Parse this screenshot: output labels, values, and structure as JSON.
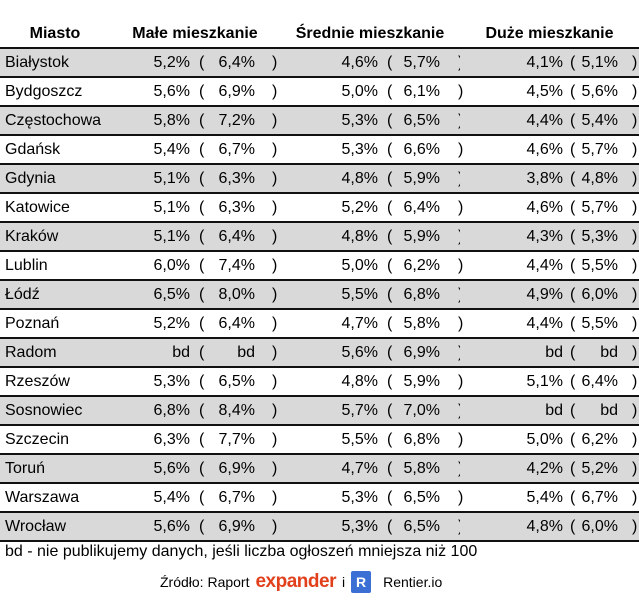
{
  "headers": [
    "Miasto",
    "Małe mieszkanie",
    "Średnie mieszkanie",
    "Duże mieszkanie"
  ],
  "rows": [
    [
      "Białystok",
      "5,2%",
      "6,4%",
      "4,6%",
      "5,7%",
      "4,1%",
      "5,1%"
    ],
    [
      "Bydgoszcz",
      "5,6%",
      "6,9%",
      "5,0%",
      "6,1%",
      "4,5%",
      "5,6%"
    ],
    [
      "Częstochowa",
      "5,8%",
      "7,2%",
      "5,3%",
      "6,5%",
      "4,4%",
      "5,4%"
    ],
    [
      "Gdańsk",
      "5,4%",
      "6,7%",
      "5,3%",
      "6,6%",
      "4,6%",
      "5,7%"
    ],
    [
      "Gdynia",
      "5,1%",
      "6,3%",
      "4,8%",
      "5,9%",
      "3,8%",
      "4,8%"
    ],
    [
      "Katowice",
      "5,1%",
      "6,3%",
      "5,2%",
      "6,4%",
      "4,6%",
      "5,7%"
    ],
    [
      "Kraków",
      "5,1%",
      "6,4%",
      "4,8%",
      "5,9%",
      "4,3%",
      "5,3%"
    ],
    [
      "Lublin",
      "6,0%",
      "7,4%",
      "5,0%",
      "6,2%",
      "4,4%",
      "5,5%"
    ],
    [
      "Łódź",
      "6,5%",
      "8,0%",
      "5,5%",
      "6,8%",
      "4,9%",
      "6,0%"
    ],
    [
      "Poznań",
      "5,2%",
      "6,4%",
      "4,7%",
      "5,8%",
      "4,4%",
      "5,5%"
    ],
    [
      "Radom",
      "bd",
      "bd",
      "5,6%",
      "6,9%",
      "bd",
      "bd"
    ],
    [
      "Rzeszów",
      "5,3%",
      "6,5%",
      "4,8%",
      "5,9%",
      "5,1%",
      "6,4%"
    ],
    [
      "Sosnowiec",
      "6,8%",
      "8,4%",
      "5,7%",
      "7,0%",
      "bd",
      "bd"
    ],
    [
      "Szczecin",
      "6,3%",
      "7,7%",
      "5,5%",
      "6,8%",
      "5,0%",
      "6,2%"
    ],
    [
      "Toruń",
      "5,6%",
      "6,9%",
      "4,7%",
      "5,8%",
      "4,2%",
      "5,2%"
    ],
    [
      "Warszawa",
      "5,4%",
      "6,7%",
      "5,3%",
      "6,5%",
      "5,4%",
      "6,7%"
    ],
    [
      "Wrocław",
      "5,6%",
      "6,9%",
      "5,3%",
      "6,5%",
      "4,8%",
      "6,0%"
    ]
  ],
  "open_paren": "(",
  "close_paren": ")",
  "note": "bd - nie publikujemy danych, jeśli liczba ogłoszeń mniejsza niż 100",
  "source": {
    "label": "Źródło: Raport",
    "brand1": "expander",
    "conj": "i",
    "brand2_logo": "R",
    "brand2": "Rentier.io"
  },
  "colors": {
    "row_alt": "#d9d9d9",
    "expander": "#e2401c",
    "rentier": "#3b6fd4"
  }
}
